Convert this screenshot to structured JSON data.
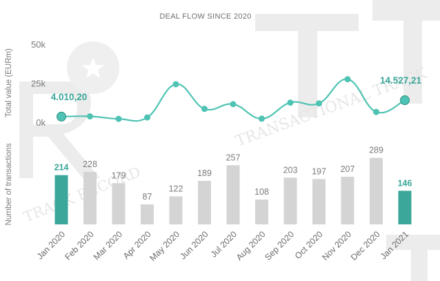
{
  "chart_data": [
    {
      "type": "line",
      "title": "DEAL FLOW SINCE 2020",
      "ylabel": "Total value (EURm)",
      "ylim": [
        0,
        50000
      ],
      "yticks": [
        "0k",
        "25k",
        "50k"
      ],
      "yticks_values": [
        0,
        25000,
        50000
      ],
      "categories": [
        "Jan 2020",
        "Feb 2020",
        "Mar 2020",
        "Apr 2020",
        "May 2020",
        "Jun 2020",
        "Jul 2020",
        "Aug 2020",
        "Sep 2020",
        "Oct 2020",
        "Nov 2020",
        "Dec 2020",
        "Jan 2021"
      ],
      "values": [
        4010.2,
        4200,
        2600,
        3500,
        24800,
        9000,
        12000,
        2700,
        13000,
        12500,
        28000,
        7000,
        14527.21
      ],
      "point_labels": [
        {
          "index": 0,
          "text": "4.010,20"
        },
        {
          "index": 12,
          "text": "14.527,21"
        }
      ],
      "grid": false,
      "color": "#4ec3b3"
    },
    {
      "type": "bar",
      "ylabel": "Number of transactions",
      "categories": [
        "Jan 2020",
        "Feb 2020",
        "Mar 2020",
        "Apr 2020",
        "May 2020",
        "Jun 2020",
        "Jul 2020",
        "Aug 2020",
        "Sep 2020",
        "Oct 2020",
        "Nov 2020",
        "Dec 2020",
        "Jan 2021"
      ],
      "values": [
        214,
        228,
        179,
        87,
        122,
        189,
        257,
        108,
        203,
        197,
        207,
        289,
        146
      ],
      "highlight_indices": [
        0,
        12
      ],
      "highlight_color": "#3aa79a",
      "bar_color": "#d4d4d4",
      "ylim": [
        0,
        300
      ],
      "grid": false
    }
  ],
  "watermark": {
    "text_1": "TRANSACTIONAL TRACK",
    "text_2": "TRACK RECORD"
  }
}
